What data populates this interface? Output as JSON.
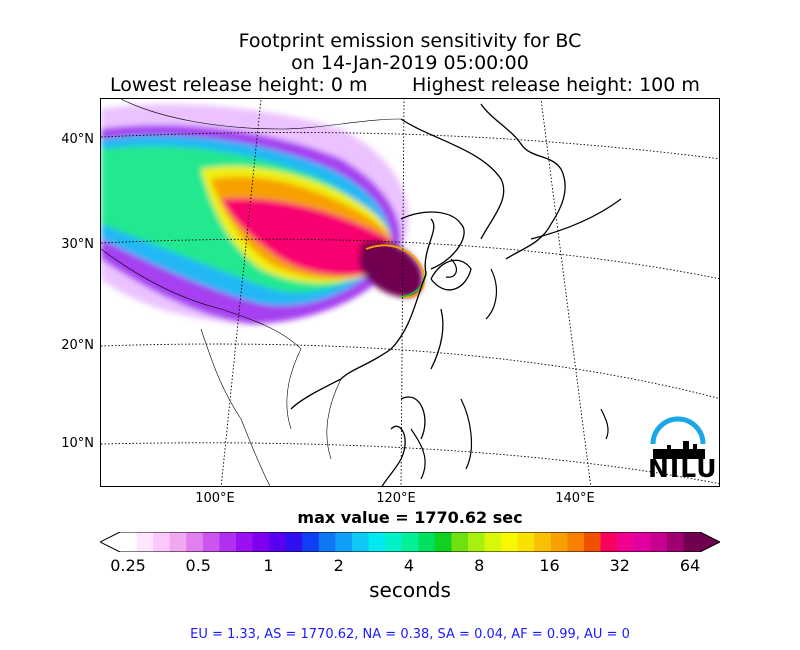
{
  "title": {
    "line1": "Footprint emission sensitivity for BC",
    "line2": "on 14-Jan-2019 05:00:00",
    "lowest": "Lowest release height: 0 m",
    "highest": "Highest release height: 100 m"
  },
  "map": {
    "lat_labels": [
      "40°N",
      "30°N",
      "20°N",
      "10°N"
    ],
    "lon_labels": [
      "100°E",
      "120°E",
      "140°E"
    ]
  },
  "max_value": "max value = 1770.62 sec",
  "colorbar": {
    "ticks": [
      "0.25",
      "0.5",
      "1",
      "2",
      "4",
      "8",
      "16",
      "32",
      "64"
    ],
    "units": "seconds",
    "colors": [
      "#ffffff",
      "#ffe6ff",
      "#fcc8fc",
      "#f0a8f0",
      "#e080f0",
      "#cc55f0",
      "#b030f0",
      "#9a10f0",
      "#7d00f0",
      "#5a00f0",
      "#3010f0",
      "#1040f5",
      "#1078f5",
      "#10a0f5",
      "#10c8f5",
      "#00e8f0",
      "#00f0c8",
      "#00f098",
      "#00e060",
      "#10d020",
      "#70e010",
      "#a8f010",
      "#d8f808",
      "#f8f800",
      "#f8e000",
      "#f8c000",
      "#f8a000",
      "#f88000",
      "#f05000",
      "#f80060",
      "#f00090",
      "#e000a0",
      "#c80090",
      "#a00070",
      "#700050"
    ]
  },
  "logo": {
    "name": "NILU",
    "arc_color": "#1aa7e6"
  },
  "footer": "EU = 1.33,  AS = 1770.62,  NA = 0.38,  SA = 0.04,  AF = 0.99,  AU = 0"
}
